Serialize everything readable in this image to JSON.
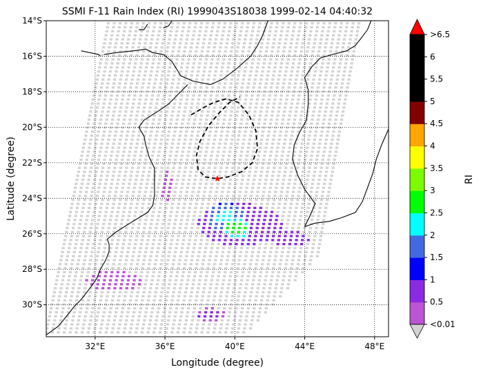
{
  "chart_data": {
    "type": "heatmap",
    "title": "SSMI F-11 Rain Index (RI) 1999043S18038 1999-02-14 04:40:32",
    "xlabel": "Longitude (degree)",
    "ylabel": "Latitude (degree)",
    "xlim": [
      29.2,
      48.8
    ],
    "ylim": [
      -31.8,
      -14.0
    ],
    "x_ticks": [
      {
        "value": 32,
        "label": "32°E"
      },
      {
        "value": 36,
        "label": "36°E"
      },
      {
        "value": 40,
        "label": "40°E"
      },
      {
        "value": 44,
        "label": "44°E"
      },
      {
        "value": 48,
        "label": "48°E"
      }
    ],
    "y_ticks": [
      {
        "value": -14,
        "label": "14°S"
      },
      {
        "value": -16,
        "label": "16°S"
      },
      {
        "value": -18,
        "label": "18°S"
      },
      {
        "value": -20,
        "label": "20°S"
      },
      {
        "value": -22,
        "label": "22°S"
      },
      {
        "value": -24,
        "label": "24°S"
      },
      {
        "value": -26,
        "label": "26°S"
      },
      {
        "value": -28,
        "label": "28°S"
      },
      {
        "value": -30,
        "label": "30°S"
      }
    ],
    "grid": true,
    "colorbar": {
      "label": "RI",
      "tick_labels": [
        "<0.01",
        "0.5",
        "1",
        "1.5",
        "2",
        "2.5",
        "3",
        "3.5",
        "4",
        "4.5",
        "5",
        "5.5",
        "6",
        ">6.5"
      ],
      "colors": [
        "#ba55d3",
        "#8a2be2",
        "#0000ff",
        "#4169e1",
        "#00ffff",
        "#00ff00",
        "#7cfc00",
        "#ffff00",
        "#ffa500",
        "#800000",
        "#000000",
        "#000000",
        "#000000"
      ],
      "under_color": "#d3d3d3",
      "over_color": "#ff0000"
    },
    "no_rain_color": "#d3d3d3",
    "storm_center": {
      "lon": 39.0,
      "lat": -22.9,
      "color": "#ff0000"
    },
    "rain_regions": [
      {
        "lon": 36.0,
        "lat": -23.2,
        "rx": 0.35,
        "ry": 0.9,
        "ri": 0.3
      },
      {
        "lon": 40.2,
        "lat": -25.4,
        "rx": 2.4,
        "ry": 1.2,
        "ri": 1.0
      },
      {
        "lon": 39.4,
        "lat": -25.0,
        "rx": 1.1,
        "ry": 0.8,
        "ri": 2.2
      },
      {
        "lon": 40.0,
        "lat": -25.6,
        "rx": 0.8,
        "ry": 0.6,
        "ri": 3.0
      },
      {
        "lon": 43.0,
        "lat": -26.2,
        "rx": 1.2,
        "ry": 0.5,
        "ri": 0.8
      },
      {
        "lon": 33.0,
        "lat": -28.6,
        "rx": 1.6,
        "ry": 0.6,
        "ri": 0.3
      },
      {
        "lon": 38.5,
        "lat": -30.5,
        "rx": 1.0,
        "ry": 0.4,
        "ri": 0.6
      }
    ]
  }
}
